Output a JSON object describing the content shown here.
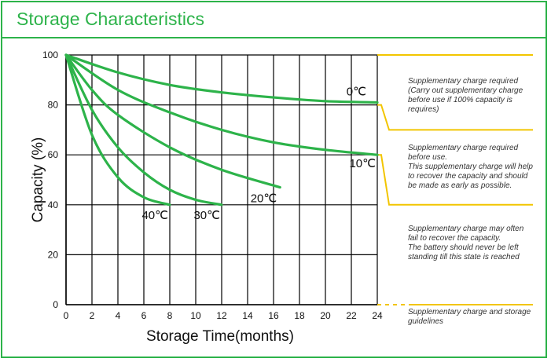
{
  "title": "Storage Characteristics",
  "colors": {
    "accent": "#2db34a",
    "curve": "#2db34a",
    "zone_line": "#f2c500",
    "grid": "#000000"
  },
  "notes": [
    {
      "lines": [
        "Supplementary charge required",
        "(Carry out supplementary charge",
        "before use if 100% capacity is",
        "requires)"
      ]
    },
    {
      "lines": [
        "Supplementary charge required",
        "before use.",
        "This supplementary charge will help",
        "to recover the capacity and should",
        "be made  as early as possible."
      ]
    },
    {
      "lines": [
        "Supplementary charge may often",
        "fail to recover the capacity.",
        "The battery should never be left",
        "standing till this state is reached"
      ]
    },
    {
      "lines": [
        "Supplementary charge and storage",
        "guidelines"
      ]
    }
  ],
  "chart_data": {
    "type": "line",
    "title": "",
    "xlabel": "Storage  Time(months)",
    "ylabel": "Capacity  (%)",
    "xlim": [
      0,
      24
    ],
    "ylim": [
      0,
      100
    ],
    "x_ticks": [
      0,
      2,
      4,
      6,
      8,
      10,
      12,
      14,
      16,
      18,
      20,
      22,
      24
    ],
    "y_ticks": [
      0,
      20,
      40,
      60,
      80,
      100
    ],
    "grid": true,
    "zone_thresholds": [
      100,
      80,
      60,
      40,
      0
    ],
    "series": [
      {
        "name": "0℃",
        "x": [
          0,
          4,
          8,
          12,
          16,
          20,
          24
        ],
        "y": [
          100,
          93,
          88,
          85,
          83,
          81.5,
          81
        ]
      },
      {
        "name": "10℃",
        "x": [
          0,
          4,
          8,
          12,
          16,
          20,
          24
        ],
        "y": [
          100,
          86,
          77,
          70,
          65,
          62,
          60
        ]
      },
      {
        "name": "20℃",
        "x": [
          0,
          2,
          4,
          8,
          12,
          16.5
        ],
        "y": [
          100,
          86,
          76,
          63,
          54,
          47
        ]
      },
      {
        "name": "30℃",
        "x": [
          0,
          2,
          4,
          6,
          8,
          10,
          12
        ],
        "y": [
          100,
          78,
          63,
          53,
          46,
          42,
          40
        ]
      },
      {
        "name": "40℃",
        "x": [
          0,
          2,
          4,
          6,
          8
        ],
        "y": [
          100,
          68,
          51,
          43,
          40
        ]
      }
    ]
  }
}
